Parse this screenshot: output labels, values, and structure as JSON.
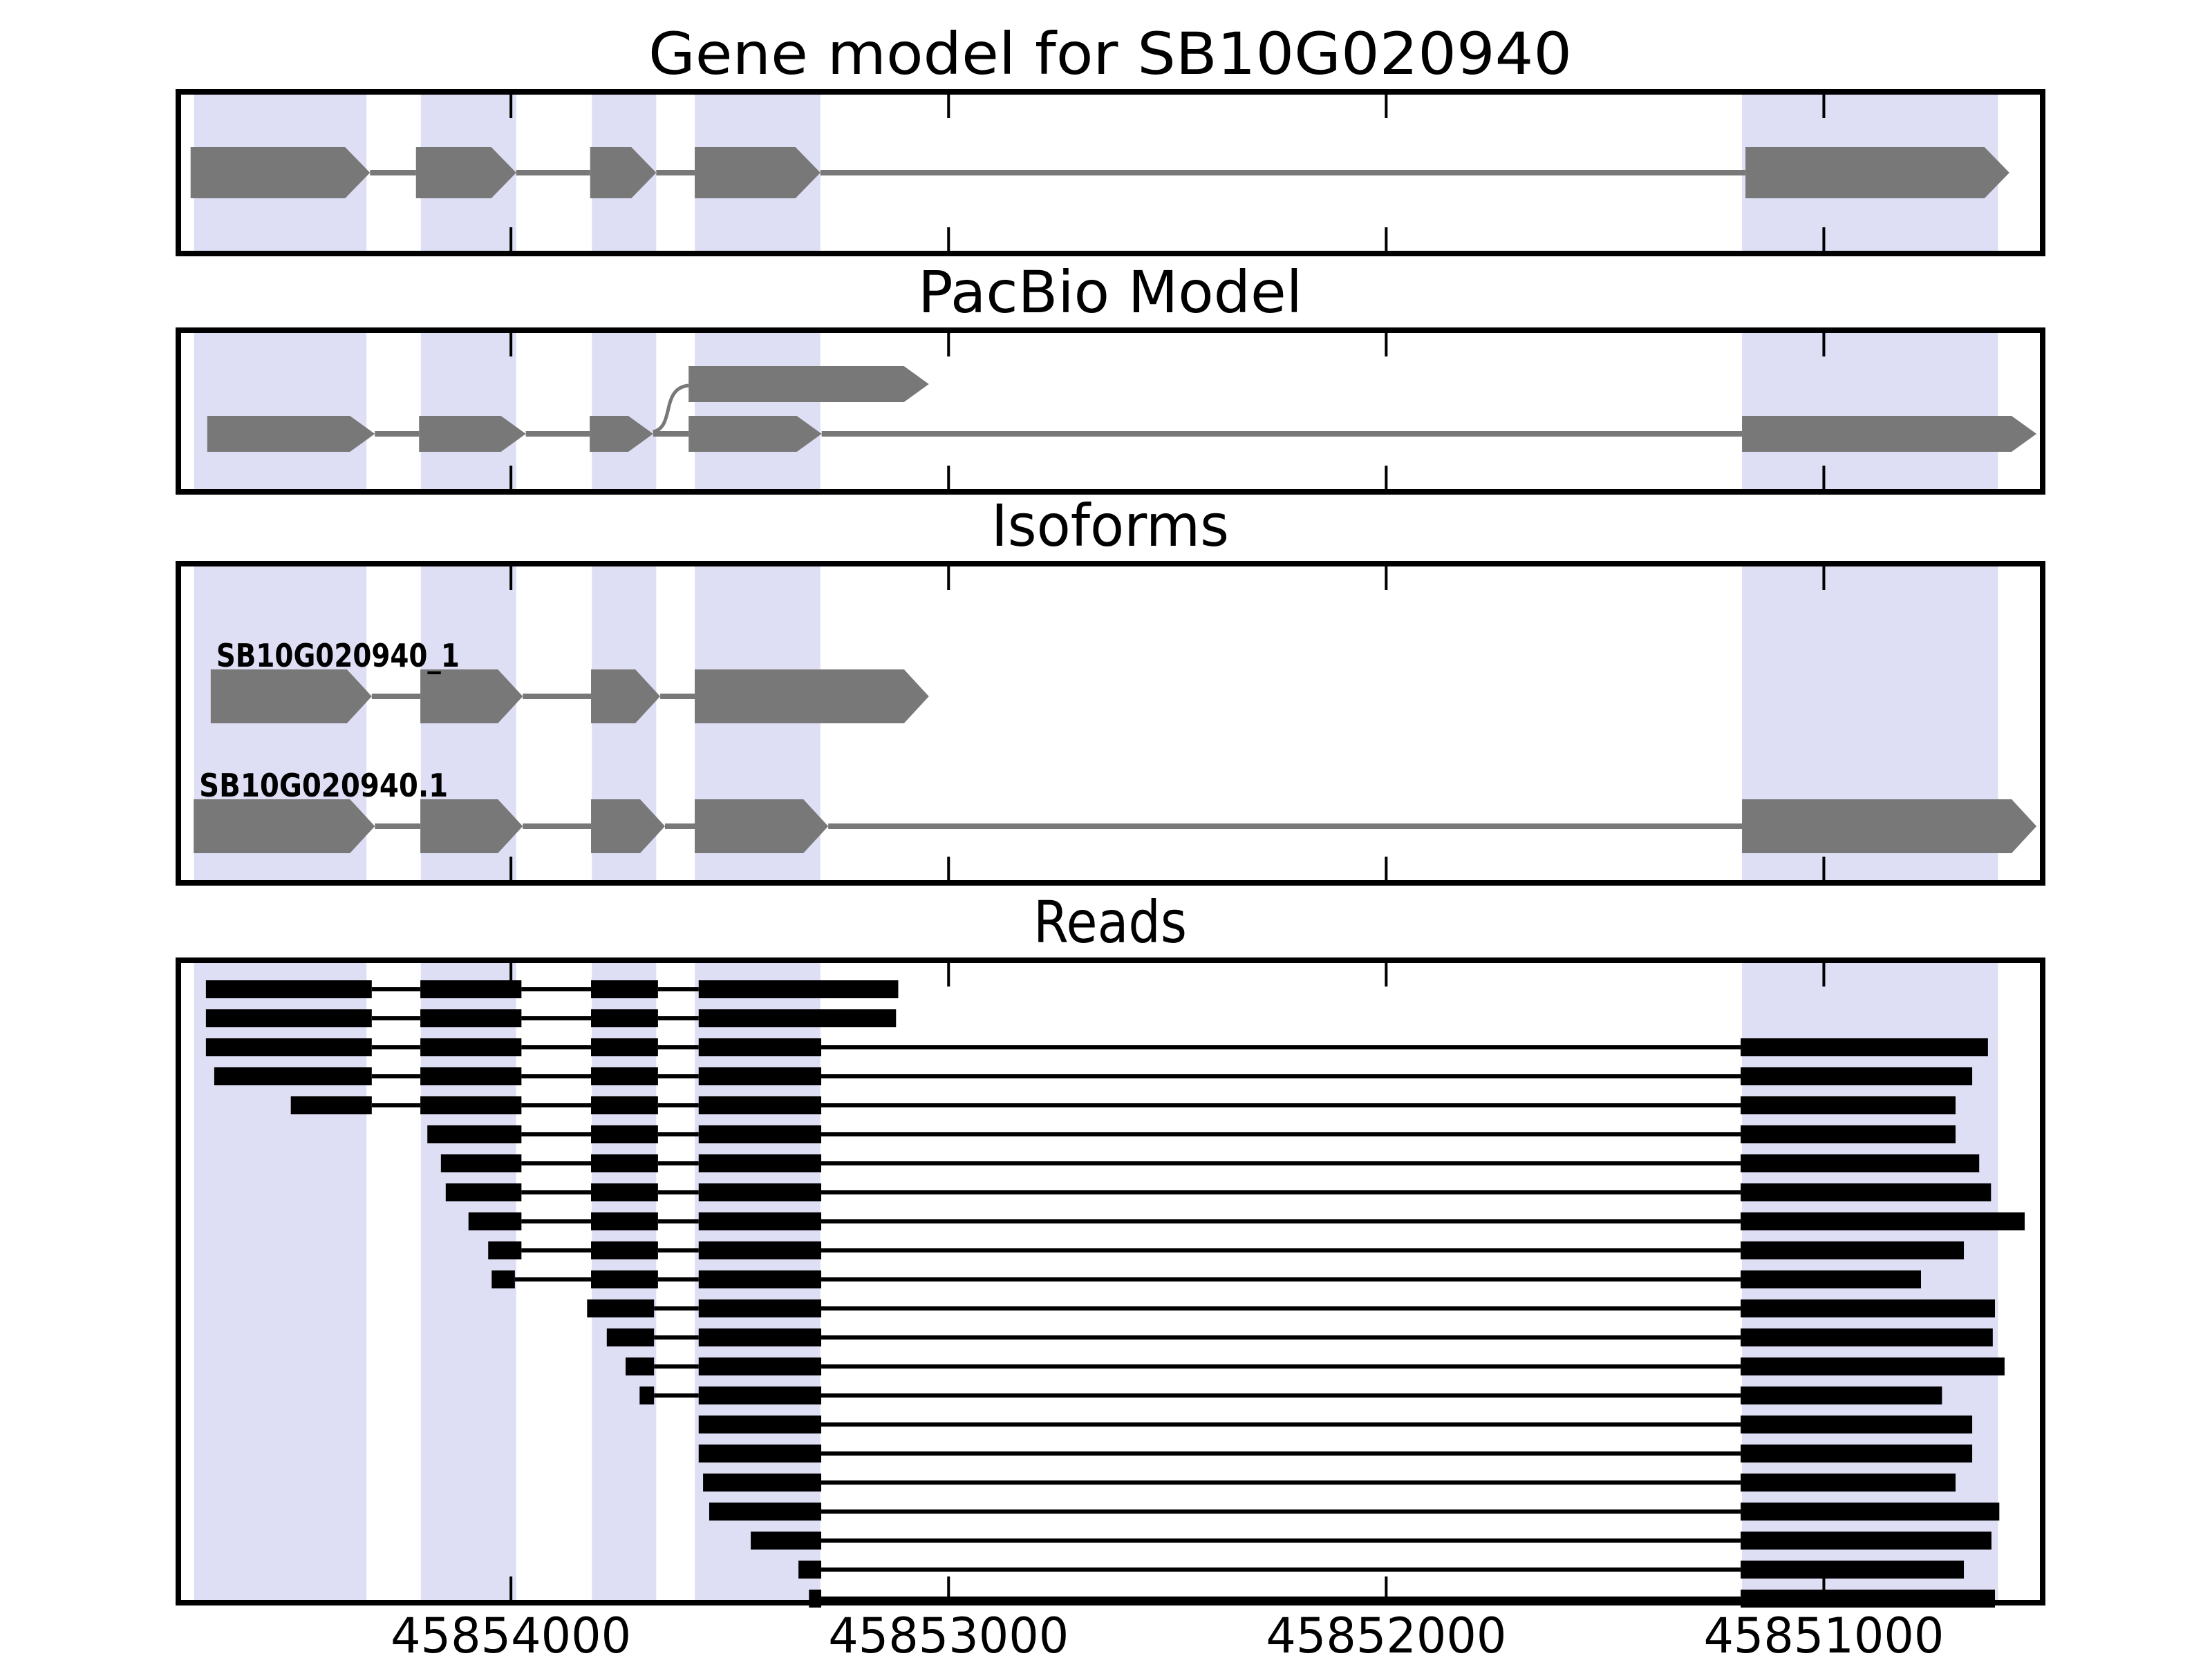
{
  "figure": {
    "background": "#ffffff",
    "band_color": "#dedef5",
    "model_color": "#787878",
    "read_color": "#000000",
    "axis_color": "#000000"
  },
  "chart_data": {
    "type": "genome-tracks",
    "title": "Gene model for SB10G020940",
    "orientation": "coordinates decrease left to right (reverse strand view)",
    "axis": {
      "xlim": [
        45854760,
        45850500
      ],
      "ticks": [
        45854000,
        45853000,
        45852000,
        45851000
      ],
      "tick_labels": [
        "45854000",
        "45853000",
        "45852000",
        "45851000"
      ]
    },
    "highlight_bands": [
      [
        45854724,
        45854330
      ],
      [
        45854206,
        45853988
      ],
      [
        45853815,
        45853668
      ],
      [
        45853580,
        45853293
      ],
      [
        45851187,
        45850602
      ]
    ],
    "panels": {
      "gene_model": {
        "title": "Gene model for SB10G020940",
        "exons": [
          [
            45854732,
            45854322
          ],
          [
            45854217,
            45853988
          ],
          [
            45853819,
            45853668
          ],
          [
            45853580,
            45853293
          ],
          [
            45851179,
            45850576
          ]
        ]
      },
      "pacbio": {
        "title": "PacBio Model",
        "secondary_exon": [
          45853594,
          45853045
        ],
        "main_exons": [
          [
            45854694,
            45854311
          ],
          [
            45854210,
            45853966
          ],
          [
            45853820,
            45853675
          ],
          [
            45853594,
            45853290
          ],
          [
            45851187,
            45850514
          ]
        ]
      },
      "isoforms": {
        "title": "Isoforms",
        "items": [
          {
            "name": "SB10G020940_1",
            "exons": [
              [
                45854686,
                45854318
              ],
              [
                45854207,
                45853973
              ],
              [
                45853817,
                45853659
              ],
              [
                45853580,
                45853045
              ]
            ]
          },
          {
            "name": "SB10G020940.1",
            "exons": [
              [
                45854725,
                45854311
              ],
              [
                45854207,
                45853973
              ],
              [
                45853817,
                45853648
              ],
              [
                45853580,
                45853275
              ],
              [
                45851187,
                45850514
              ]
            ]
          }
        ]
      },
      "reads": {
        "title": "Reads",
        "items": [
          {
            "blocks": [
              [
                45854697,
                45854318
              ],
              [
                45854207,
                45853976
              ],
              [
                45853817,
                45853664
              ],
              [
                45853571,
                45853115
              ]
            ]
          },
          {
            "blocks": [
              [
                45854697,
                45854318
              ],
              [
                45854207,
                45853976
              ],
              [
                45853817,
                45853664
              ],
              [
                45853571,
                45853120
              ]
            ]
          },
          {
            "blocks": [
              [
                45854697,
                45854318
              ],
              [
                45854207,
                45853976
              ],
              [
                45853817,
                45853664
              ],
              [
                45853571,
                45853291
              ],
              [
                45851190,
                45850625
              ]
            ]
          },
          {
            "blocks": [
              [
                45854678,
                45854318
              ],
              [
                45854207,
                45853976
              ],
              [
                45853817,
                45853664
              ],
              [
                45853571,
                45853291
              ],
              [
                45851190,
                45850661
              ]
            ]
          },
          {
            "blocks": [
              [
                45854503,
                45854318
              ],
              [
                45854207,
                45853976
              ],
              [
                45853817,
                45853664
              ],
              [
                45853571,
                45853291
              ],
              [
                45851190,
                45850699
              ]
            ]
          },
          {
            "blocks": [
              [
                45854191,
                45853976
              ],
              [
                45853817,
                45853664
              ],
              [
                45853571,
                45853291
              ],
              [
                45851190,
                45850699
              ]
            ]
          },
          {
            "blocks": [
              [
                45854160,
                45853976
              ],
              [
                45853817,
                45853664
              ],
              [
                45853571,
                45853291
              ],
              [
                45851190,
                45850645
              ]
            ]
          },
          {
            "blocks": [
              [
                45854149,
                45853976
              ],
              [
                45853817,
                45853664
              ],
              [
                45853571,
                45853291
              ],
              [
                45851190,
                45850618
              ]
            ]
          },
          {
            "blocks": [
              [
                45854097,
                45853976
              ],
              [
                45853817,
                45853664
              ],
              [
                45853571,
                45853291
              ],
              [
                45851190,
                45850541
              ]
            ]
          },
          {
            "blocks": [
              [
                45854052,
                45853976
              ],
              [
                45853817,
                45853664
              ],
              [
                45853571,
                45853291
              ],
              [
                45851190,
                45850680
              ]
            ]
          },
          {
            "blocks": [
              [
                45854044,
                45853991
              ],
              [
                45853817,
                45853664
              ],
              [
                45853571,
                45853291
              ],
              [
                45851190,
                45850778
              ]
            ]
          },
          {
            "blocks": [
              [
                45853826,
                45853673
              ],
              [
                45853571,
                45853291
              ],
              [
                45851190,
                45850609
              ]
            ]
          },
          {
            "blocks": [
              [
                45853781,
                45853673
              ],
              [
                45853571,
                45853291
              ],
              [
                45851190,
                45850614
              ]
            ]
          },
          {
            "blocks": [
              [
                45853738,
                45853673
              ],
              [
                45853571,
                45853291
              ],
              [
                45851190,
                45850587
              ]
            ]
          },
          {
            "blocks": [
              [
                45853706,
                45853673
              ],
              [
                45853571,
                45853291
              ],
              [
                45851190,
                45850730
              ]
            ]
          },
          {
            "blocks": [
              [
                45853571,
                45853291
              ],
              [
                45851190,
                45850661
              ]
            ]
          },
          {
            "blocks": [
              [
                45853571,
                45853291
              ],
              [
                45851190,
                45850661
              ]
            ]
          },
          {
            "blocks": [
              [
                45853561,
                45853291
              ],
              [
                45851190,
                45850699
              ]
            ]
          },
          {
            "blocks": [
              [
                45853547,
                45853291
              ],
              [
                45851190,
                45850599
              ]
            ]
          },
          {
            "blocks": [
              [
                45853452,
                45853291
              ],
              [
                45851190,
                45850617
              ]
            ]
          },
          {
            "blocks": [
              [
                45853343,
                45853291
              ],
              [
                45851190,
                45850680
              ]
            ]
          },
          {
            "blocks": [
              [
                45853319,
                45853291
              ],
              [
                45851190,
                45850609
              ]
            ]
          }
        ]
      }
    }
  }
}
